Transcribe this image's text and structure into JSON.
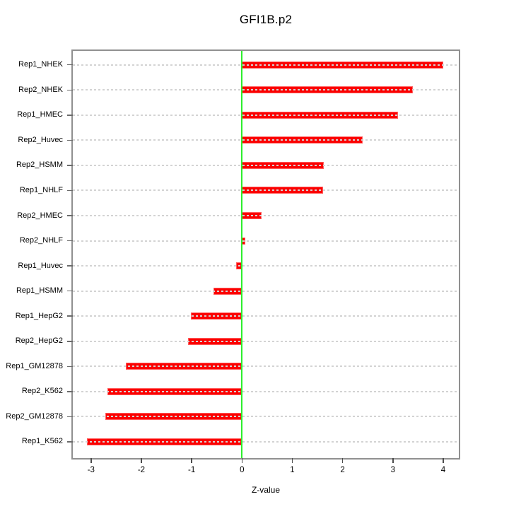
{
  "title": "GFI1B.p2",
  "chart_data": {
    "type": "bar",
    "orientation": "horizontal",
    "title": "GFI1B.p2",
    "xlabel": "Z-value",
    "ylabel": "",
    "categories": [
      "Rep1_NHEK",
      "Rep2_NHEK",
      "Rep1_HMEC",
      "Rep2_Huvec",
      "Rep2_HSMM",
      "Rep1_NHLF",
      "Rep2_HMEC",
      "Rep2_NHLF",
      "Rep1_Huvec",
      "Rep1_HSMM",
      "Rep1_HepG2",
      "Rep2_HepG2",
      "Rep1_GM12878",
      "Rep2_K562",
      "Rep2_GM12878",
      "Rep1_K562"
    ],
    "values": [
      4.0,
      3.4,
      3.1,
      2.4,
      1.63,
      1.61,
      0.39,
      0.06,
      -0.11,
      -0.57,
      -1.02,
      -1.07,
      -2.31,
      -2.68,
      -2.72,
      -3.08
    ],
    "x_ticks": [
      -3,
      -2,
      -1,
      0,
      1,
      2,
      3,
      4
    ],
    "xlim": [
      -3.36,
      4.3
    ],
    "grid": "dotted horizontal line per category, drawn over bars",
    "legend": "none",
    "colors": {
      "bar": "#fb0000",
      "bar_edge": "#ff5f5f",
      "zero_line": "#2dee2d",
      "gridline": "#d3d3d3",
      "box_border": "#909090",
      "tick": "#4d4d4d",
      "text": "#000000",
      "background": "#ffffff"
    }
  }
}
